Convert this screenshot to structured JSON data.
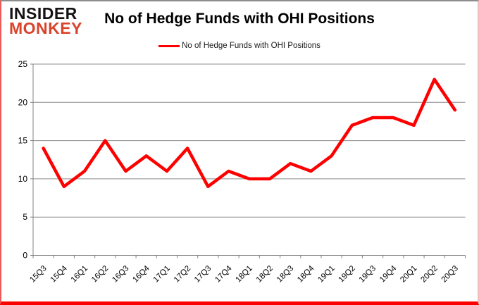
{
  "logo": {
    "line1": "INSIDER",
    "line2": "MONKEY"
  },
  "header": {
    "title": "No of Hedge Funds with OHI Positions"
  },
  "legend": {
    "label": "No of Hedge Funds with OHI Positions",
    "color": "#fe0000"
  },
  "colors": {
    "line": "#fe0000",
    "grid": "#8c8c8c",
    "axis": "#808080",
    "label_text": "#000000",
    "border_bottom": "#f90400",
    "logo_red": "#d9432a"
  },
  "chart_data": {
    "type": "line",
    "title": "No of Hedge Funds with OHI Positions",
    "legend_entries": [
      "No of Hedge Funds with OHI Positions"
    ],
    "legend_position": "top",
    "categories": [
      "15Q3",
      "15Q4",
      "16Q1",
      "16Q2",
      "16Q3",
      "16Q4",
      "17Q1",
      "17Q2",
      "17Q3",
      "17Q4",
      "18Q1",
      "18Q2",
      "18Q3",
      "18Q4",
      "19Q1",
      "19Q2",
      "19Q3",
      "19Q4",
      "20Q1",
      "20Q2",
      "20Q3"
    ],
    "values": [
      14,
      9,
      11,
      15,
      11,
      13,
      11,
      14,
      9,
      11,
      10,
      10,
      12,
      11,
      13,
      17,
      18,
      18,
      17,
      23,
      19
    ],
    "xlabel": "",
    "ylabel": "",
    "ylim": [
      0,
      25
    ],
    "yticks": [
      0,
      5,
      10,
      15,
      20,
      25
    ],
    "grid": true,
    "line_color": "#fe0000",
    "grid_color": "#8c8c8c",
    "axis_color": "#808080",
    "line_width": 4.5
  }
}
